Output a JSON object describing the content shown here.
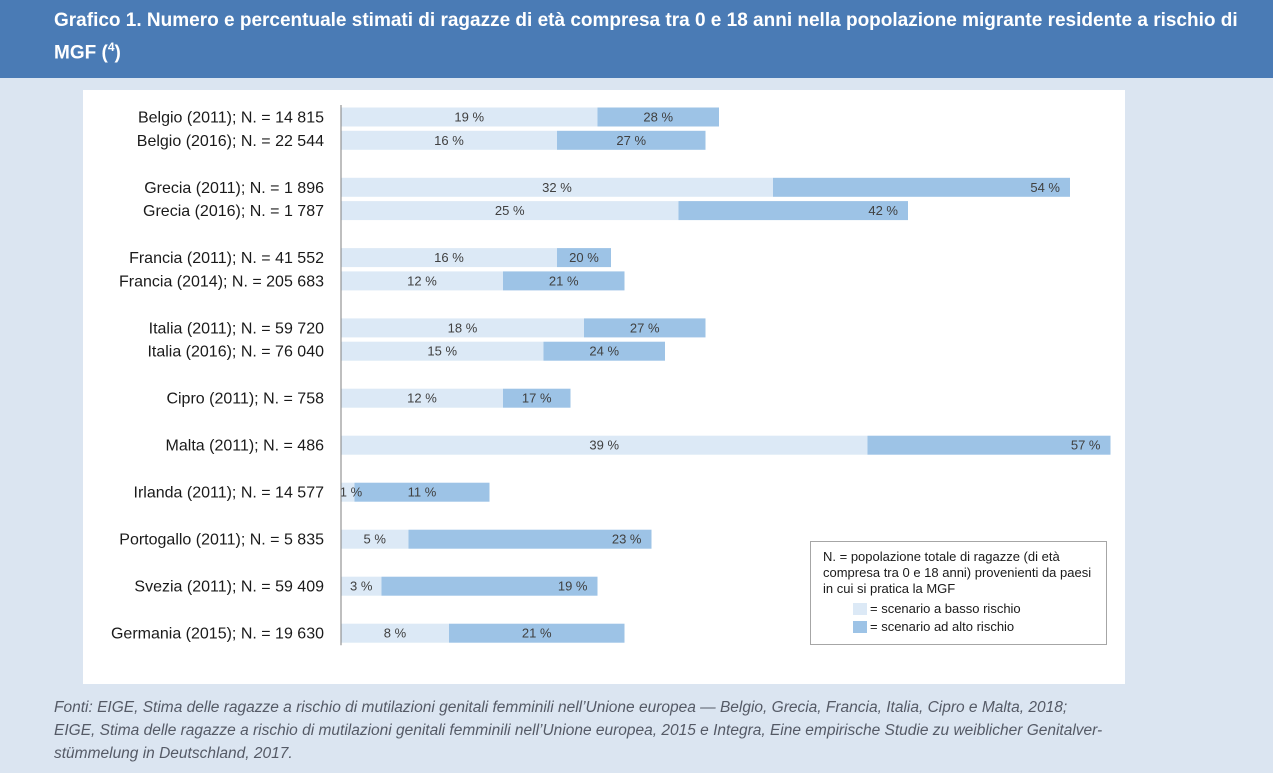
{
  "header": {
    "title": "Grafico 1. Numero e percentuale stimati di ragazze di età compresa tra 0 e 18 anni nella popolazione migrante residente a rischio di MGF (",
    "note_ref": "4",
    "title_end": ")"
  },
  "legend": {
    "note": "N. = popolazione totale di ragazze (di età compresa tra 0 e 18 anni) provenienti da paesi in cui si pratica la MGF",
    "low_label": "= scenario a basso rischio",
    "high_label": "= scenario ad alto rischio"
  },
  "source": {
    "line1": "Fonti: EIGE, Stima delle ragazze a rischio di mutilazioni genitali femminili nell’Unione europea — Belgio, Grecia, Francia, Italia, Cipro e Malta, 2018;",
    "line2": "EIGE, Stima delle ragazze a rischio di mutilazioni genitali femminili nell’Unione europea, 2015 e Integra, Eine empirische Studie zu weiblicher Genitalver-",
    "line3": "stümmelung in Deutschland, 2017."
  },
  "colors": {
    "header_bg": "#4a7bb5",
    "page_bg": "#dbe5f1",
    "low_risk": "#dce9f6",
    "high_risk": "#9dc3e6",
    "axis": "#7f7f7f"
  },
  "chart_data": {
    "type": "bar",
    "orientation": "horizontal",
    "grid": false,
    "legend_position": "bottom-right",
    "categories": [
      "Belgio (2011); N. = 14 815",
      "Belgio (2016); N. = 22 544",
      "Grecia (2011); N. = 1 896",
      "Grecia (2016); N. = 1 787",
      "Francia (2011); N. = 41 552",
      "Francia (2014); N. = 205 683",
      "Italia (2011); N. = 59 720",
      "Italia (2016); N. = 76 040",
      "Cipro (2011); N. = 758",
      "Malta (2011); N. = 486",
      "Irlanda (2011); N. = 14 577",
      "Portogallo (2011); N. = 5 835",
      "Svezia (2011); N. = 59 409",
      "Germania (2015); N. = 19 630"
    ],
    "groups": [
      [
        0,
        1
      ],
      [
        2,
        3
      ],
      [
        4,
        5
      ],
      [
        6,
        7
      ],
      [
        8
      ],
      [
        9
      ],
      [
        10
      ],
      [
        11
      ],
      [
        12
      ],
      [
        13
      ]
    ],
    "series": [
      {
        "name": "scenario a basso rischio",
        "values": [
          19,
          16,
          32,
          25,
          16,
          12,
          18,
          15,
          12,
          39,
          1,
          5,
          3,
          8
        ]
      },
      {
        "name": "scenario ad alto rischio",
        "values": [
          28,
          27,
          54,
          42,
          20,
          21,
          27,
          24,
          17,
          57,
          11,
          23,
          19,
          21
        ]
      }
    ],
    "value_suffix": " %",
    "xlim": [
      0,
      57
    ]
  }
}
